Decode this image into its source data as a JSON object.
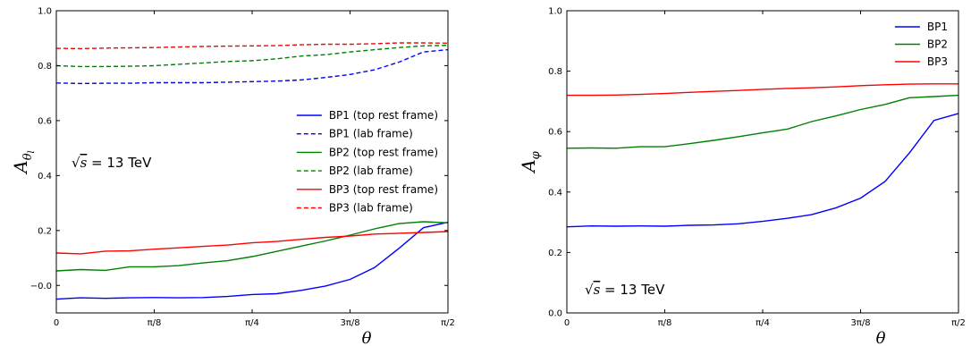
{
  "chart_data": [
    {
      "type": "line",
      "ylabel": "A",
      "ylabel_sub": "θ",
      "ylabel_subsub": "l",
      "xlabel": "θ",
      "xlim": [
        0,
        1.5708
      ],
      "ylim": [
        -0.1,
        1.0
      ],
      "xticks": [
        "0",
        "π/8",
        "π/4",
        "3π/8",
        "π/2"
      ],
      "xtick_values": [
        0,
        0.3927,
        0.7854,
        1.1781,
        1.5708
      ],
      "yticks": [
        "−0.0",
        "0.2",
        "0.4",
        "0.6",
        "0.8",
        "1.0"
      ],
      "ytick_values": [
        0.0,
        0.2,
        0.4,
        0.6,
        0.8,
        1.0
      ],
      "annotation": {
        "sqrt": "√",
        "s": "s",
        "rest": " = 13 TeV"
      },
      "legend_position": "center-right",
      "x": [
        0,
        0.0982,
        0.1963,
        0.2945,
        0.3927,
        0.4909,
        0.589,
        0.6872,
        0.7854,
        0.8836,
        0.9817,
        1.0799,
        1.1781,
        1.2763,
        1.3744,
        1.4726,
        1.5708
      ],
      "series": [
        {
          "name": "BP1 (top rest frame)",
          "color": "#0000ff",
          "dash": "solid",
          "values": [
            -0.05,
            -0.045,
            -0.047,
            -0.045,
            -0.044,
            -0.045,
            -0.044,
            -0.04,
            -0.033,
            -0.03,
            -0.018,
            -0.002,
            0.022,
            0.065,
            0.135,
            0.21,
            0.23
          ]
        },
        {
          "name": "BP1 (lab frame)",
          "color": "#0000ff",
          "dash": "dashed",
          "values": [
            0.737,
            0.735,
            0.736,
            0.736,
            0.738,
            0.738,
            0.738,
            0.74,
            0.742,
            0.744,
            0.748,
            0.757,
            0.768,
            0.785,
            0.813,
            0.85,
            0.858
          ]
        },
        {
          "name": "BP2 (top rest frame)",
          "color": "#008000",
          "dash": "solid",
          "values": [
            0.053,
            0.058,
            0.055,
            0.068,
            0.068,
            0.072,
            0.082,
            0.09,
            0.105,
            0.124,
            0.143,
            0.162,
            0.183,
            0.206,
            0.225,
            0.232,
            0.228
          ]
        },
        {
          "name": "BP2 (lab frame)",
          "color": "#008000",
          "dash": "dashed",
          "values": [
            0.8,
            0.797,
            0.797,
            0.798,
            0.8,
            0.805,
            0.81,
            0.815,
            0.818,
            0.825,
            0.835,
            0.84,
            0.85,
            0.858,
            0.866,
            0.872,
            0.874
          ]
        },
        {
          "name": "BP3 (top rest frame)",
          "color": "#ff0000",
          "dash": "solid",
          "values": [
            0.118,
            0.115,
            0.125,
            0.126,
            0.132,
            0.137,
            0.142,
            0.147,
            0.155,
            0.16,
            0.168,
            0.175,
            0.18,
            0.187,
            0.19,
            0.193,
            0.196
          ]
        },
        {
          "name": "BP3 (lab frame)",
          "color": "#ff0000",
          "dash": "dashed",
          "values": [
            0.863,
            0.862,
            0.864,
            0.865,
            0.866,
            0.868,
            0.87,
            0.871,
            0.872,
            0.873,
            0.876,
            0.878,
            0.878,
            0.88,
            0.883,
            0.883,
            0.882
          ]
        }
      ]
    },
    {
      "type": "line",
      "ylabel": "A",
      "ylabel_sub": "φ",
      "ylabel_subsub": "",
      "xlabel": "θ",
      "xlim": [
        0,
        1.5708
      ],
      "ylim": [
        0.0,
        1.0
      ],
      "xticks": [
        "0",
        "π/8",
        "π/4",
        "3π/8",
        "π/2"
      ],
      "xtick_values": [
        0,
        0.3927,
        0.7854,
        1.1781,
        1.5708
      ],
      "yticks": [
        "0.0",
        "0.2",
        "0.4",
        "0.6",
        "0.8",
        "1.0"
      ],
      "ytick_values": [
        0.0,
        0.2,
        0.4,
        0.6,
        0.8,
        1.0
      ],
      "annotation": {
        "sqrt": "√",
        "s": "s",
        "rest": " = 13 TeV"
      },
      "legend_position": "top-right",
      "x": [
        0,
        0.0982,
        0.1963,
        0.2945,
        0.3927,
        0.4909,
        0.589,
        0.6872,
        0.7854,
        0.8836,
        0.9817,
        1.0799,
        1.1781,
        1.2763,
        1.3744,
        1.4726,
        1.5708
      ],
      "series": [
        {
          "name": "BP1",
          "color": "#0000ff",
          "dash": "solid",
          "values": [
            0.285,
            0.288,
            0.287,
            0.288,
            0.287,
            0.29,
            0.291,
            0.295,
            0.303,
            0.313,
            0.325,
            0.348,
            0.38,
            0.435,
            0.53,
            0.637,
            0.66
          ]
        },
        {
          "name": "BP2",
          "color": "#008000",
          "dash": "solid",
          "values": [
            0.545,
            0.546,
            0.545,
            0.55,
            0.55,
            0.56,
            0.571,
            0.583,
            0.596,
            0.608,
            0.633,
            0.652,
            0.673,
            0.69,
            0.712,
            0.716,
            0.72
          ]
        },
        {
          "name": "BP3",
          "color": "#ff0000",
          "dash": "solid",
          "values": [
            0.72,
            0.72,
            0.721,
            0.723,
            0.726,
            0.73,
            0.733,
            0.736,
            0.74,
            0.743,
            0.745,
            0.748,
            0.752,
            0.755,
            0.757,
            0.758,
            0.758
          ]
        }
      ]
    }
  ]
}
